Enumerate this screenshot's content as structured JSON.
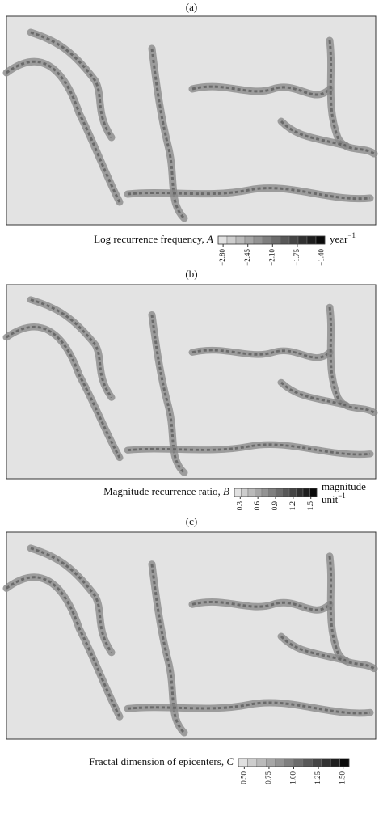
{
  "panels": [
    {
      "label": "(a)",
      "colorbar": {
        "title": "Log recurrence frequency,",
        "variable": "A",
        "unit_lines": [
          "year"
        ],
        "unit_exponent": "−1",
        "lim": [
          -2.87,
          -1.36
        ],
        "ticks": [
          {
            "value": -2.8,
            "label": "−2.80"
          },
          {
            "value": -2.45,
            "label": "−2.45"
          },
          {
            "value": -2.1,
            "label": "−2.10"
          },
          {
            "value": -1.75,
            "label": "−1.75"
          },
          {
            "value": -1.4,
            "label": "−1.40"
          }
        ]
      }
    },
    {
      "label": "(b)",
      "colorbar": {
        "title": "Magnitude recurrence ratio,",
        "variable": "B",
        "unit_lines": [
          "magnitude",
          "unit"
        ],
        "unit_exponent": "−1",
        "lim": [
          0.2,
          1.6
        ],
        "ticks": [
          0.3,
          0.6,
          0.9,
          1.2,
          1.5
        ]
      }
    },
    {
      "label": "(c)",
      "colorbar": {
        "title": "Fractal dimension of epicenters,",
        "variable": "C",
        "unit_lines": [],
        "unit_exponent": "",
        "lim": [
          0.44,
          1.56
        ],
        "ticks": [
          {
            "value": 0.5,
            "label": "0.50"
          },
          {
            "value": 0.75,
            "label": "0.75"
          },
          {
            "value": 1.0,
            "label": "1.00"
          },
          {
            "value": 1.25,
            "label": "1.25"
          },
          {
            "value": 1.5,
            "label": "1.50"
          }
        ]
      }
    }
  ]
}
